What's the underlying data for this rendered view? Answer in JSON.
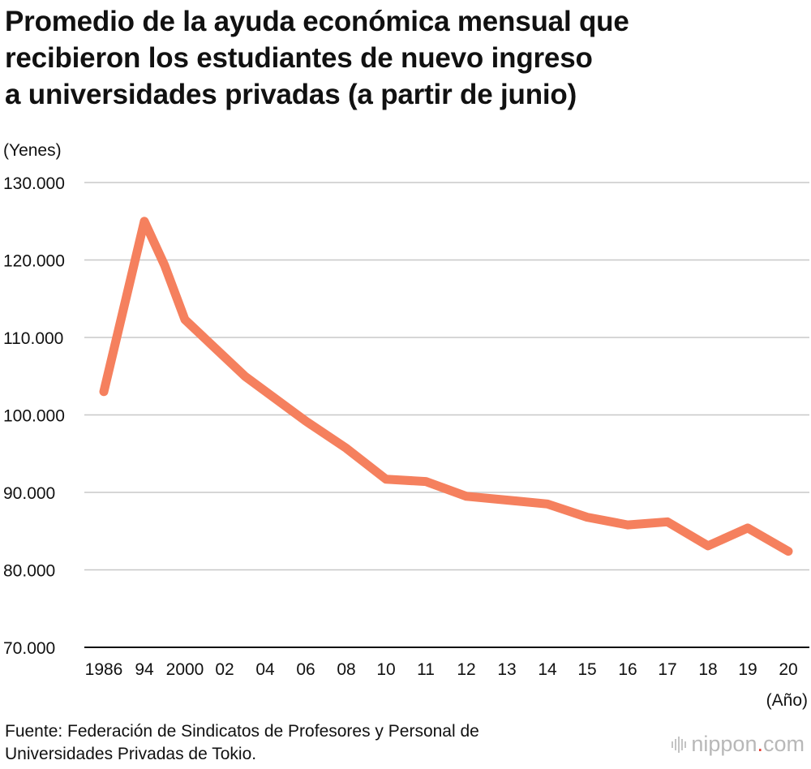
{
  "title_lines": [
    "Promedio de la ayuda económica mensual que",
    "recibieron los estudiantes de nuevo ingreso",
    "a universidades privadas (a partir de junio)"
  ],
  "source_lines": [
    "Fuente: Federación de Sindicatos de Profesores y Personal de",
    "Universidades Privadas de Tokio."
  ],
  "logo": {
    "main": "nippon",
    "dot": ".",
    "tld": "com",
    "color_dot": "#e63a2f"
  },
  "chart_data": {
    "type": "line",
    "ylabel": "(Yenes)",
    "xlabel": "(Año)",
    "ylim": [
      70000,
      130000
    ],
    "y_ticks": [
      {
        "value": 130000,
        "label": "130.000"
      },
      {
        "value": 120000,
        "label": "120.000"
      },
      {
        "value": 110000,
        "label": "110.000"
      },
      {
        "value": 100000,
        "label": "100.000"
      },
      {
        "value": 90000,
        "label": "90.000"
      },
      {
        "value": 80000,
        "label": "80.000"
      },
      {
        "value": 70000,
        "label": "70.000"
      }
    ],
    "categories": [
      "1986",
      "94",
      "2000",
      "02",
      "04",
      "06",
      "08",
      "10",
      "11",
      "12",
      "13",
      "14",
      "15",
      "16",
      "17",
      "18",
      "19",
      "20"
    ],
    "years": [
      1986,
      1994,
      2000,
      2002,
      2004,
      2006,
      2008,
      2010,
      2011,
      2012,
      2013,
      2014,
      2015,
      2016,
      2017,
      2018,
      2019,
      2020
    ],
    "series": [
      {
        "color": "#f5805e",
        "points": [
          {
            "year": 1986,
            "value": 103000
          },
          {
            "year": 1994,
            "value": 125000
          },
          {
            "year": 1997,
            "value": 119300
          },
          {
            "year": 2000,
            "value": 112300
          },
          {
            "year": 2003,
            "value": 105000
          },
          {
            "year": 2006,
            "value": 99200
          },
          {
            "year": 2008,
            "value": 95700
          },
          {
            "year": 2010,
            "value": 91700
          },
          {
            "year": 2011,
            "value": 91400
          },
          {
            "year": 2012,
            "value": 89500
          },
          {
            "year": 2013,
            "value": 89000
          },
          {
            "year": 2014,
            "value": 88500
          },
          {
            "year": 2015,
            "value": 86800
          },
          {
            "year": 2016,
            "value": 85800
          },
          {
            "year": 2017,
            "value": 86200
          },
          {
            "year": 2018,
            "value": 83100
          },
          {
            "year": 2019,
            "value": 85400
          },
          {
            "year": 2020,
            "value": 82400
          }
        ]
      }
    ],
    "grid": true,
    "gridline_color": "#c8c8c8"
  }
}
